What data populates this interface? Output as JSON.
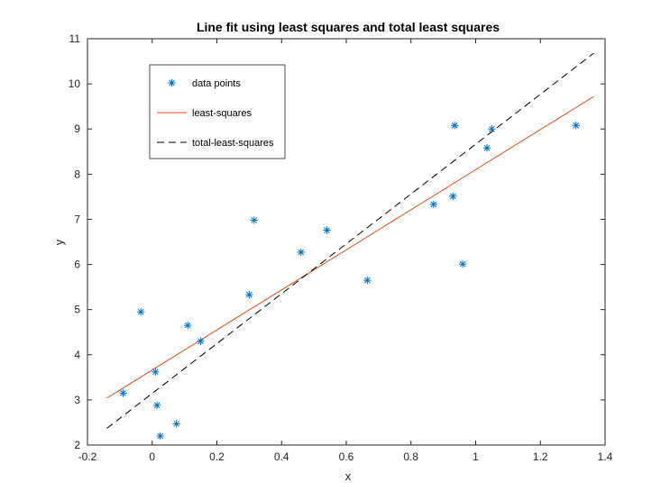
{
  "chart_data": {
    "type": "scatter",
    "title": "Line fit using least squares and total least squares",
    "xlabel": "x",
    "ylabel": "y",
    "xlim": [
      -0.2,
      1.4
    ],
    "ylim": [
      2,
      11
    ],
    "xticks": [
      -0.2,
      0,
      0.2,
      0.4,
      0.6,
      0.8,
      1,
      1.2,
      1.4
    ],
    "xtick_labels": [
      "-0.2",
      "0",
      "0.2",
      "0.4",
      "0.6",
      "0.8",
      "1",
      "1.2",
      "1.4"
    ],
    "yticks": [
      2,
      3,
      4,
      5,
      6,
      7,
      8,
      9,
      10,
      11
    ],
    "ytick_labels": [
      "2",
      "3",
      "4",
      "5",
      "6",
      "7",
      "8",
      "9",
      "10",
      "11"
    ],
    "grid": false,
    "legend_position": "top-left",
    "series": [
      {
        "name": "data points",
        "kind": "scatter",
        "marker": "asterisk",
        "color": "#0072BD",
        "x": [
          -0.09,
          -0.035,
          0.01,
          0.015,
          0.025,
          0.075,
          0.11,
          0.15,
          0.3,
          0.315,
          0.46,
          0.54,
          0.665,
          0.87,
          0.93,
          0.935,
          0.96,
          1.035,
          1.05,
          1.31
        ],
        "y": [
          3.15,
          4.95,
          3.62,
          2.88,
          2.2,
          2.47,
          4.65,
          4.3,
          5.33,
          6.98,
          6.27,
          6.76,
          5.65,
          7.33,
          7.51,
          9.08,
          6.01,
          8.58,
          9.0,
          9.08
        ]
      },
      {
        "name": "least-squares",
        "kind": "line",
        "dash": "solid",
        "color": "#D95319",
        "x": [
          -0.14,
          1.365
        ],
        "y": [
          3.04,
          9.72
        ]
      },
      {
        "name": "total-least-squares",
        "kind": "line",
        "dash": "dashed",
        "color": "#000000",
        "x": [
          -0.14,
          1.365
        ],
        "y": [
          2.37,
          10.68
        ]
      }
    ]
  }
}
